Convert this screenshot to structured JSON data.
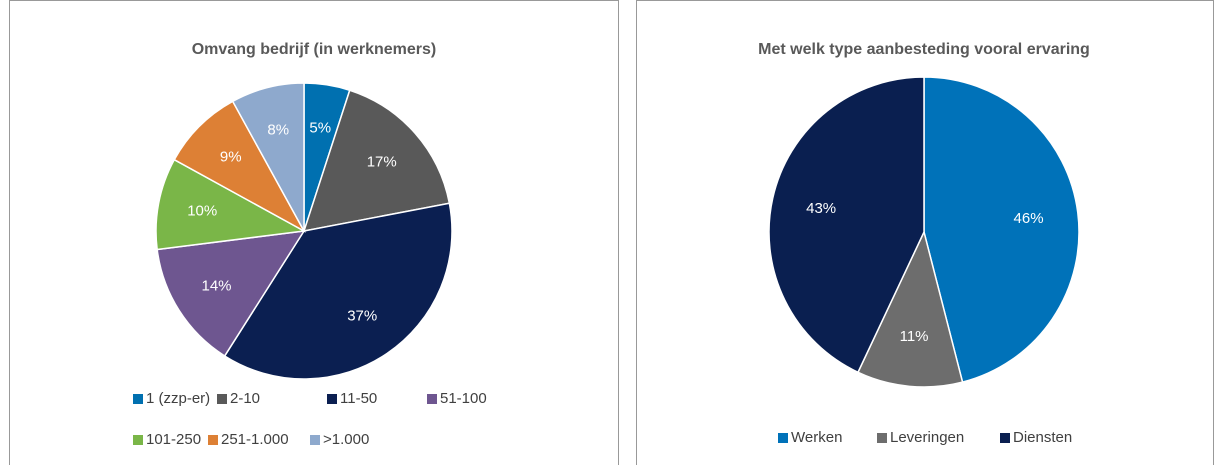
{
  "chart_data": [
    {
      "type": "pie",
      "title": "Omvang bedrijf (in werknemers)",
      "categories": [
        "1 (zzp-er)",
        "2-10",
        "11-50",
        "51-100",
        "101-250",
        "251-1.000",
        ">1.000"
      ],
      "values": [
        5,
        17,
        37,
        14,
        10,
        9,
        8
      ],
      "value_labels": [
        "5%",
        "17%",
        "37%",
        "14%",
        "10%",
        "9%",
        "8%"
      ],
      "colors": [
        "#0070b0",
        "#595959",
        "#0b1f51",
        "#6e5690",
        "#7ab648",
        "#dd8035",
        "#8ea9cd"
      ],
      "legend": "bottom"
    },
    {
      "type": "pie",
      "title": "Met welk type aanbesteding vooral ervaring",
      "categories": [
        "Werken",
        "Leveringen",
        "Diensten"
      ],
      "values": [
        46,
        11,
        43
      ],
      "value_labels": [
        "46%",
        "11%",
        "43%"
      ],
      "colors": [
        "#0072b9",
        "#6d6d6d",
        "#0a1f50"
      ],
      "legend": "bottom"
    }
  ]
}
